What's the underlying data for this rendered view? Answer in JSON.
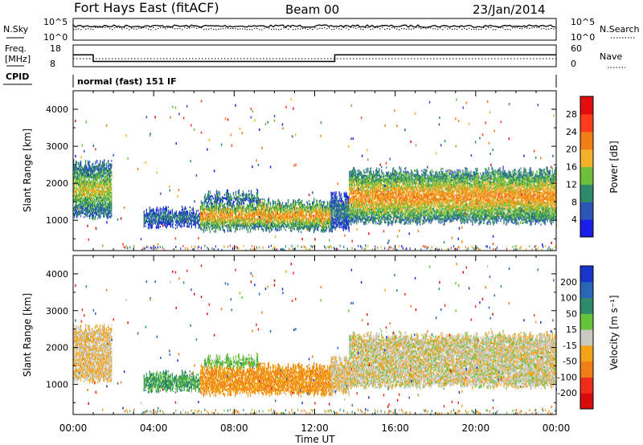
{
  "header": {
    "station": "Fort Hays East (fitACF)",
    "beam": "Beam 00",
    "date": "23/Jan/2014"
  },
  "noise_panel": {
    "left_label": "N.Sky",
    "right_label": "N.Search",
    "left_ticks": [
      "10^5",
      "10^0"
    ],
    "right_ticks": [
      "10^5",
      "10^0"
    ]
  },
  "freq_panel": {
    "left_label_1": "Freq.",
    "left_label_2": "[MHz]",
    "right_label": "Nave",
    "left_ticks": [
      "18",
      "8"
    ],
    "right_ticks": [
      "60",
      "0"
    ],
    "cpid_label": "CPID",
    "cpid_text": "normal (fast) 151 IF",
    "freq_steps": [
      {
        "from_hour": 0,
        "to_hour": 1,
        "mhz": 13.5
      },
      {
        "from_hour": 1,
        "to_hour": 13,
        "mhz": 10.4
      },
      {
        "from_hour": 13,
        "to_hour": 24,
        "mhz": 13.5
      }
    ]
  },
  "power_panel": {
    "ylabel": "Slant Range [km]",
    "yticks": [
      "1000",
      "2000",
      "3000",
      "4000"
    ],
    "colorbar_label": "Power [dB]",
    "colorbar_ticks": [
      "4",
      "8",
      "12",
      "16",
      "20",
      "24",
      "28"
    ],
    "colors": [
      "#1a1ee6",
      "#2b56b5",
      "#2f8a6a",
      "#6fbf3c",
      "#f1b22a",
      "#f07d17",
      "#ff3c1a",
      "#e30d0d"
    ]
  },
  "velocity_panel": {
    "ylabel": "Slant Range [km]",
    "yticks": [
      "1000",
      "2000",
      "3000",
      "4000"
    ],
    "colorbar_label": "Velocity [m s⁻¹]",
    "colorbar_ticks": [
      "200",
      "100",
      "50",
      "15",
      "-15",
      "-50",
      "-100",
      "-200"
    ],
    "colors": [
      "#1935c9",
      "#2a66b8",
      "#2f8a6a",
      "#66c43a",
      "#c9c9c2",
      "#f2a318",
      "#f07d17",
      "#ee2d1b",
      "#d70c0c"
    ]
  },
  "x_axis": {
    "label": "Time UT",
    "ticks": [
      "00:00",
      "04:00",
      "08:00",
      "12:00",
      "16:00",
      "20:00",
      "00:00"
    ]
  },
  "chart_data": {
    "type": "heatmap",
    "title": "Fort Hays East (fitACF)",
    "subtitle": "Beam 00",
    "xlabel": "Time UT",
    "ylabel": "Slant Range [km]",
    "xlim_hours": [
      0,
      24
    ],
    "ylim_km": [
      180,
      4500
    ],
    "echo_regions": [
      {
        "t0": 0.0,
        "t1": 1.9,
        "r0": 1100,
        "r1": 2500,
        "power_db": 14,
        "velocity": -8
      },
      {
        "t0": 3.5,
        "t1": 6.3,
        "r0": 850,
        "r1": 1250,
        "power_db": 8,
        "velocity": 35
      },
      {
        "t0": 6.3,
        "t1": 12.8,
        "r0": 750,
        "r1": 1450,
        "power_db": 18,
        "velocity": -28
      },
      {
        "t0": 6.5,
        "t1": 9.2,
        "r0": 1500,
        "r1": 1700,
        "power_db": 10,
        "velocity": 20
      },
      {
        "t0": 12.8,
        "t1": 13.7,
        "r0": 750,
        "r1": 1650,
        "power_db": 8,
        "velocity": -5
      },
      {
        "t0": 13.7,
        "t1": 24.0,
        "r0": 950,
        "r1": 2300,
        "power_db": 18,
        "velocity": -2
      }
    ],
    "noise_sky": "~10^4",
    "noise_search": "~10^4"
  }
}
